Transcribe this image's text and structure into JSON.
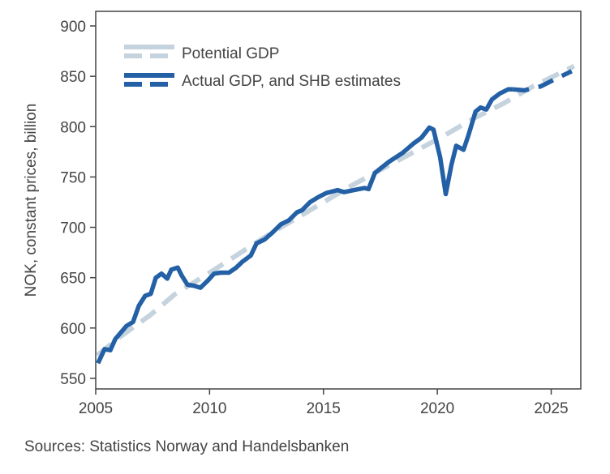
{
  "chart_data": {
    "type": "line",
    "title": "",
    "xlabel": "",
    "ylabel": "NOK, constant prices, billion",
    "xlim": [
      2005,
      2026.3
    ],
    "ylim": [
      539.5,
      914.5
    ],
    "xticks": [
      2005,
      2010,
      2015,
      2020,
      2025
    ],
    "yticks": [
      550,
      600,
      650,
      700,
      750,
      800,
      850,
      900
    ],
    "grid": false,
    "legend_position": "top-left",
    "series": [
      {
        "name": "Potential GDP",
        "color": "#c5d3de",
        "style": "dashed",
        "points": [
          [
            2005.07,
            573
          ],
          [
            2006,
            590
          ],
          [
            2007.4,
            613
          ],
          [
            2008.5,
            634
          ],
          [
            2009.8,
            652
          ],
          [
            2011.1,
            671
          ],
          [
            2012.4,
            690
          ],
          [
            2016.2,
            741
          ],
          [
            2017.5,
            757
          ],
          [
            2018.9,
            774
          ],
          [
            2020.3,
            791
          ],
          [
            2021.5,
            807
          ],
          [
            2022.9,
            823
          ],
          [
            2024.2,
            840
          ],
          [
            2026,
            860
          ]
        ]
      },
      {
        "name": "Actual GDP, and SHB estimates",
        "color": "#2360a5",
        "style": "solid",
        "points": [
          [
            2005.1,
            565
          ],
          [
            2005.39,
            579
          ],
          [
            2005.64,
            578
          ],
          [
            2005.86,
            589
          ],
          [
            2006.35,
            602
          ],
          [
            2006.64,
            606
          ],
          [
            2006.89,
            622
          ],
          [
            2007.17,
            632
          ],
          [
            2007.42,
            634
          ],
          [
            2007.64,
            650
          ],
          [
            2007.89,
            654
          ],
          [
            2008.14,
            649
          ],
          [
            2008.32,
            658
          ],
          [
            2008.6,
            660
          ],
          [
            2008.78,
            652
          ],
          [
            2009.03,
            643
          ],
          [
            2009.31,
            642
          ],
          [
            2009.6,
            640
          ],
          [
            2009.92,
            647
          ],
          [
            2010.2,
            654
          ],
          [
            2010.49,
            655
          ],
          [
            2010.85,
            655
          ],
          [
            2011.17,
            660
          ],
          [
            2011.45,
            666
          ],
          [
            2011.81,
            672
          ],
          [
            2012.06,
            684
          ],
          [
            2012.42,
            688
          ],
          [
            2012.77,
            695
          ],
          [
            2013.13,
            703
          ],
          [
            2013.48,
            707
          ],
          [
            2013.84,
            715
          ],
          [
            2014.06,
            717
          ],
          [
            2014.41,
            725
          ],
          [
            2014.77,
            730
          ],
          [
            2015.12,
            734
          ],
          [
            2015.62,
            737
          ],
          [
            2015.91,
            735
          ],
          [
            2016.34,
            737
          ],
          [
            2016.8,
            739
          ],
          [
            2016.98,
            738
          ],
          [
            2017.26,
            754
          ],
          [
            2017.87,
            765
          ],
          [
            2018.48,
            774
          ],
          [
            2018.94,
            783
          ],
          [
            2019.3,
            789
          ],
          [
            2019.65,
            799
          ],
          [
            2019.83,
            797
          ],
          [
            2020.12,
            770
          ],
          [
            2020.37,
            733
          ],
          [
            2020.62,
            762
          ],
          [
            2020.83,
            781
          ],
          [
            2021.15,
            777
          ],
          [
            2021.36,
            791
          ],
          [
            2021.68,
            815
          ],
          [
            2021.9,
            819
          ],
          [
            2022.15,
            817
          ],
          [
            2022.4,
            827
          ],
          [
            2022.75,
            833
          ],
          [
            2023.11,
            837
          ],
          [
            2023.32,
            837
          ]
        ],
        "estimate_points": [
          [
            2023.32,
            837
          ],
          [
            2023.82,
            836
          ],
          [
            2024.54,
            840
          ],
          [
            2025.25,
            848
          ],
          [
            2025.9,
            855
          ]
        ]
      }
    ]
  },
  "source": "Sources: Statistics Norway and Handelsbanken"
}
